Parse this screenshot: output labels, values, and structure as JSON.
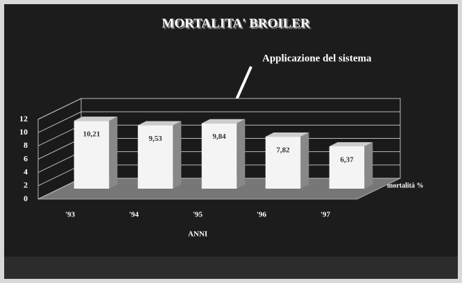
{
  "chart_data": {
    "type": "bar3d",
    "title": "MORTALITA' BROILER",
    "annotation": "Applicazione del sistema",
    "x_label": "ANNI",
    "y_label": "mortalità %",
    "categories": [
      "'93",
      "'94",
      "'95",
      "'96",
      "'97"
    ],
    "values": [
      10.21,
      9.53,
      9.84,
      7.82,
      6.37
    ],
    "value_labels": [
      "10,21",
      "9,53",
      "9,84",
      "7,82",
      "6,37"
    ],
    "color": "#f4f4f4",
    "ylim": [
      0,
      12
    ],
    "yticks": [
      0,
      2,
      4,
      6,
      8,
      10,
      12
    ],
    "grid": true
  }
}
